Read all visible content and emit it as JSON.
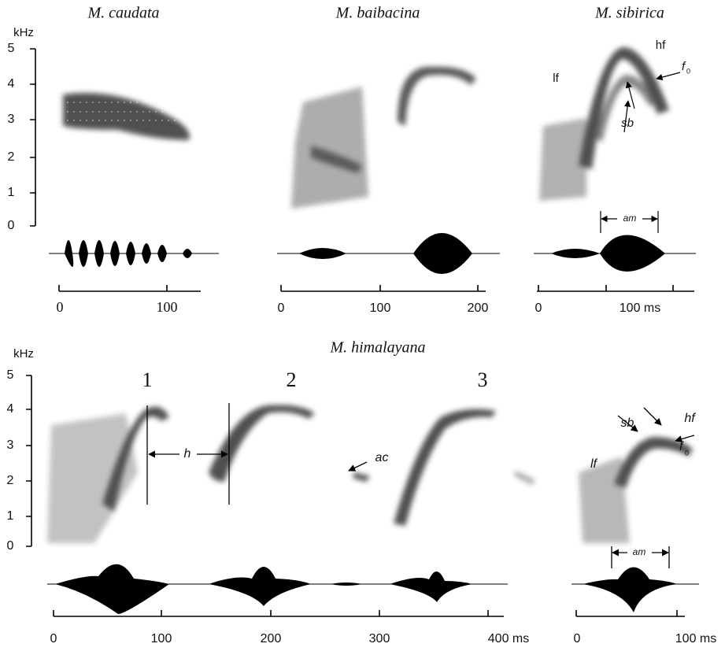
{
  "top_row": {
    "y_axis": {
      "unit": "kHz",
      "ticks": [
        "0",
        "1",
        "2",
        "3",
        "4",
        "5"
      ]
    },
    "panels": [
      {
        "title": "M. caudata",
        "x_ticks": [
          "0",
          "100"
        ]
      },
      {
        "title": "M. baibacina",
        "x_ticks": [
          "0",
          "100",
          "200"
        ]
      },
      {
        "title": "M. sibirica",
        "x_ticks": [
          "0",
          "100 ms"
        ],
        "annotations": {
          "lf": "lf",
          "hf": "hf",
          "f": "f",
          "f_sub": "0",
          "sb": "sb",
          "am": "am"
        }
      }
    ]
  },
  "bottom_row": {
    "title": "M. himalayana",
    "y_axis": {
      "unit": "kHz",
      "ticks": [
        "0",
        "1",
        "2",
        "3",
        "4",
        "5"
      ]
    },
    "call_numbers": [
      "1",
      "2",
      "3"
    ],
    "annotations": {
      "h": "h",
      "ac": "ac"
    },
    "x_ticks": [
      "0",
      "100",
      "200",
      "300",
      "400 ms"
    ],
    "right_panel": {
      "annotations": {
        "sb": "sb",
        "hf": "hf",
        "lf": "lf",
        "f": "f",
        "f_sub": "0",
        "am": "am"
      },
      "x_ticks": [
        "0",
        "100 ms"
      ]
    }
  }
}
